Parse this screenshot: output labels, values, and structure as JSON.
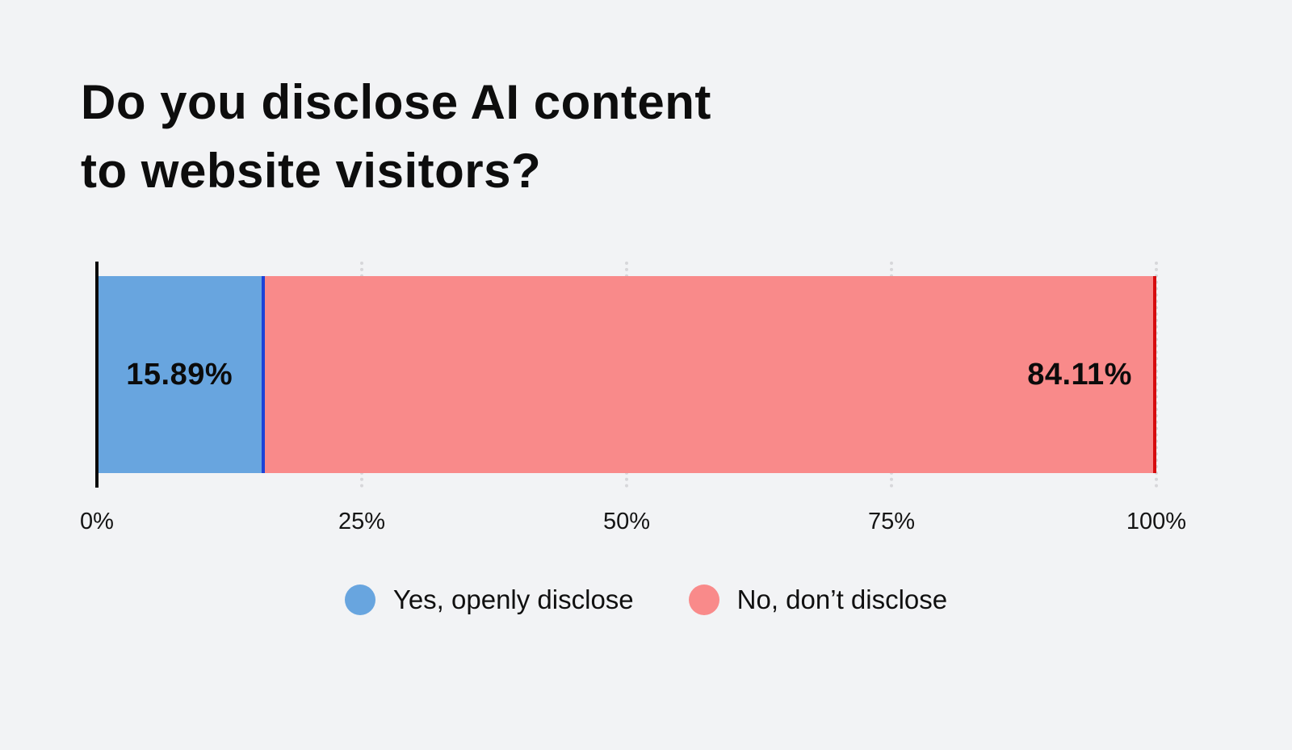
{
  "title": {
    "line1": "Do you disclose AI content",
    "line2": "to website visitors?"
  },
  "chart_data": {
    "type": "bar",
    "orientation": "horizontal",
    "stacked": true,
    "title": "Do you disclose AI content to website visitors?",
    "series": [
      {
        "name": "Yes, openly disclose",
        "values": [
          15.89
        ],
        "label": "15.89%",
        "color": "#68a5df",
        "edge_color": "#1d43d8"
      },
      {
        "name": "No, don’t disclose",
        "values": [
          84.11
        ],
        "label": "84.11%",
        "color": "#f98a8a",
        "edge_color": "#d60b0e"
      }
    ],
    "xlim": [
      0,
      100
    ],
    "xticks": [
      {
        "value": 0,
        "label": "0%"
      },
      {
        "value": 25,
        "label": "25%"
      },
      {
        "value": 50,
        "label": "50%"
      },
      {
        "value": 75,
        "label": "75%"
      },
      {
        "value": 100,
        "label": "100%"
      }
    ],
    "gridlines": [
      25,
      50,
      75,
      100
    ],
    "grid": "dotted-vertical",
    "legend_position": "bottom"
  },
  "colors": {
    "background": "#f2f3f5",
    "axis": "#0a0a0a",
    "gridline": "#d7d7da",
    "text": "#111111"
  }
}
